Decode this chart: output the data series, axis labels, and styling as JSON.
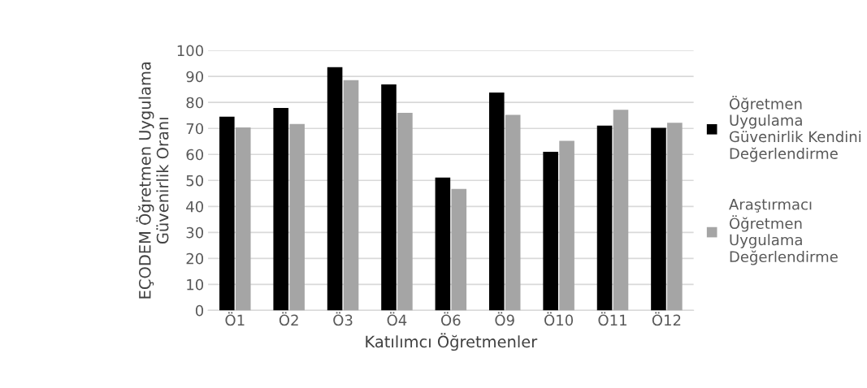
{
  "chart_data": {
    "type": "bar",
    "xlabel": "Katılımcı Öğretmenler",
    "ylabel": "EÇODEM Öğretmen Uygulama\nGüvenirlik Oranı",
    "categories": [
      "Ö1",
      "Ö2",
      "Ö3",
      "Ö4",
      "Ö6",
      "Ö9",
      "Ö10",
      "Ö11",
      "Ö12"
    ],
    "series": [
      {
        "name": "Öğretmen\nUygulama\nGüvenirlik Kendini\nDeğerlendirme",
        "color": "#000000",
        "values": [
          74.5,
          77.9,
          93.6,
          86.9,
          51.1,
          83.8,
          61.0,
          71.1,
          70.2
        ]
      },
      {
        "name": "Araştırmacı\nÖğretmen\nUygulama\nDeğerlendirme",
        "color": "#a5a5a5",
        "values": [
          70.4,
          71.7,
          88.6,
          76.0,
          46.7,
          75.2,
          65.2,
          77.2,
          72.2
        ]
      }
    ],
    "ylim": [
      0,
      100
    ],
    "yticks": [
      0,
      10,
      20,
      30,
      40,
      50,
      60,
      70,
      80,
      90,
      100
    ],
    "grid": "y",
    "legend": "right"
  }
}
